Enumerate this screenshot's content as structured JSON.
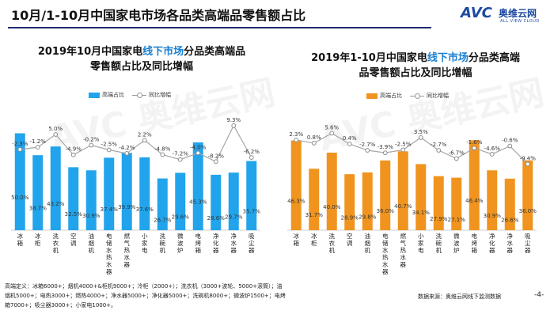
{
  "header": {
    "title": "10月/1-10月中国家电市场各品类高端品零售额占比"
  },
  "logo": {
    "brand": "AVC",
    "cn": "奥维云网",
    "en": "ALL VIEW CLOUD"
  },
  "watermark": {
    "text": "AVC 奥维云网"
  },
  "footnote": "高端定义：冰箱6000+；烟机4000+&柜机9000+；冷柜（2000+）；洗衣机（3000+波轮、5000+滚筒）；油烟机5000+；电热3000+；燃热4000+；净水器5000+；净化器5000+；洗碗机8000+；微波炉1500+；电烤箱7000+；吸尘器3000+；小家电1000+。",
  "source": "数据来源：奥维云网线下监测数据",
  "page_number": "-4-",
  "colors": {
    "left_bar": "#21a4ec",
    "right_bar": "#f0941f",
    "line": "#a6a6a6",
    "highlight": "#1a7fd0"
  },
  "chart_data": [
    {
      "type": "bar",
      "title_parts": [
        "2019年10月中国家电",
        "线下市场",
        "分品类高端品"
      ],
      "title_line2": "零售额占比及同比增幅",
      "legend": [
        "高端占比",
        "同比增幅"
      ],
      "categories": [
        "冰箱",
        "冰柜",
        "洗衣机",
        "空调",
        "油烟机",
        "电储水热水器",
        "燃气热水器",
        "小家电",
        "洗碗机",
        "微波炉",
        "电烤箱",
        "净化器",
        "净水器",
        "吸尘器"
      ],
      "series": [
        {
          "name": "高端占比",
          "type": "bar",
          "values": [
            50.0,
            38.7,
            43.2,
            32.5,
            30.9,
            37.4,
            39.9,
            37.6,
            26.7,
            29.6,
            45.3,
            28.6,
            29.7,
            35.7
          ],
          "labels": [
            "50.0%",
            "38.7%",
            "43.2%",
            "32.5%",
            "30.9%",
            "37.4%",
            "39.9%",
            "37.6%",
            "26.7%",
            "29.6%",
            "45.3%",
            "28.6%",
            "29.7%",
            "35.7%"
          ]
        },
        {
          "name": "同比增幅",
          "type": "line",
          "values": [
            -2.3,
            -1.2,
            5.0,
            -4.9,
            -0.2,
            -2.5,
            -4.2,
            2.2,
            -4.8,
            -7.2,
            -4.0,
            -8.2,
            9.3,
            -6.2
          ],
          "labels": [
            "-2.3%",
            "-1.2%",
            "5.0%",
            "-4.9%",
            "-0.2%",
            "-2.5%",
            "-4.2%",
            "2.2%",
            "-4.8%",
            "-7.2%",
            "-4.0%",
            "-8.2%",
            "9.3%",
            "-6.2%"
          ]
        }
      ]
    },
    {
      "type": "bar",
      "title_parts": [
        "2019年1-10月中国家电",
        "线下市场",
        "分品类高端"
      ],
      "title_line2": "品零售额占比及同比增幅",
      "legend": [
        "高端占比",
        "同比增幅"
      ],
      "categories": [
        "冰箱",
        "冰柜",
        "洗衣机",
        "空调",
        "油烟机",
        "电储水热水器",
        "燃气热水器",
        "小家电",
        "洗碗机",
        "微波炉",
        "电烤箱",
        "净化器",
        "净水器",
        "吸尘器"
      ],
      "series": [
        {
          "name": "高端占比",
          "type": "bar",
          "values": [
            46.3,
            31.7,
            40.0,
            28.9,
            29.8,
            36.0,
            40.7,
            34.1,
            27.9,
            27.1,
            46.4,
            30.9,
            26.6,
            36.0
          ],
          "labels": [
            "46.3%",
            "31.7%",
            "40.0%",
            "28.9%",
            "29.8%",
            "36.0%",
            "40.7%",
            "34.1%",
            "27.9%",
            "27.1%",
            "46.4%",
            "30.9%",
            "26.6%",
            "36.0%"
          ]
        },
        {
          "name": "同比增幅",
          "type": "line",
          "values": [
            2.3,
            0.8,
            5.6,
            0.4,
            -2.7,
            -3.9,
            -2.5,
            3.5,
            -2.7,
            -6.7,
            -1.6,
            -4.6,
            -0.6,
            -9.4
          ],
          "labels": [
            "2.3%",
            "0.8%",
            "5.6%",
            "0.4%",
            "-2.7%",
            "-3.9%",
            "-2.5%",
            "3.5%",
            "-2.7%",
            "-6.7%",
            "-1.6%",
            "-4.6%",
            "-0.6%",
            "-9.4%"
          ]
        }
      ]
    }
  ]
}
